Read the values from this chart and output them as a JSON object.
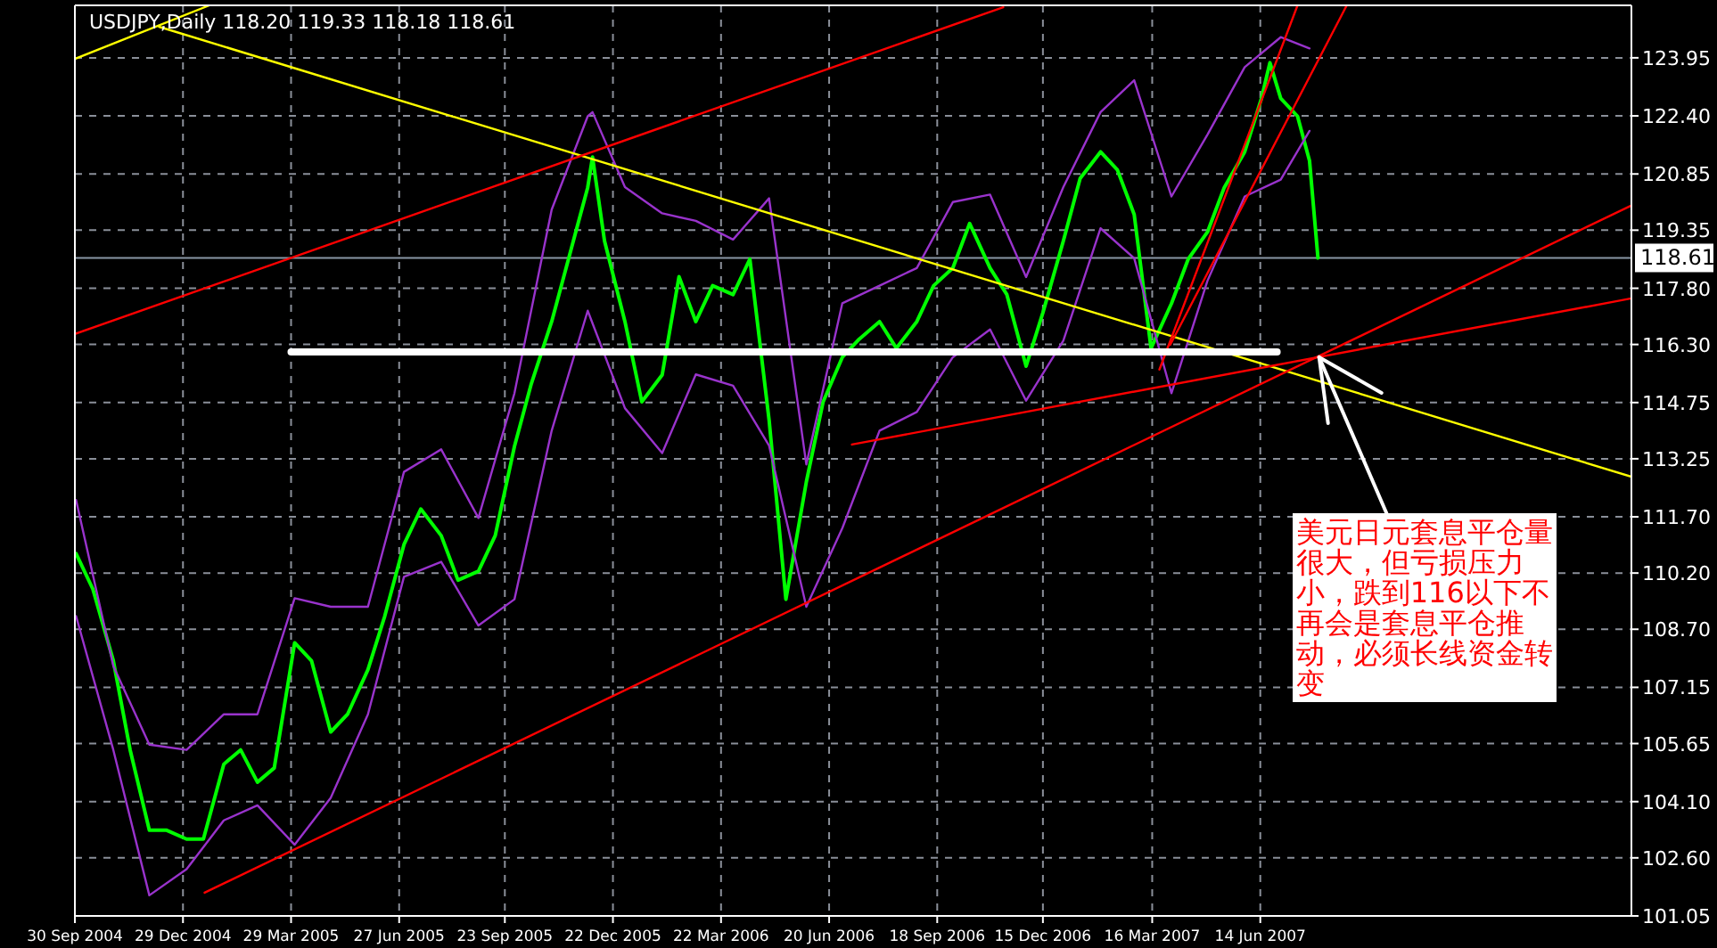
{
  "chart_data": {
    "type": "line",
    "title": "USDJPY,Daily  118.20 119.33 118.18 118.61",
    "xlim": [
      "2004-09-30",
      "2008-04-18"
    ],
    "xticks": [
      {
        "value": "2004-09-30",
        "label": "30 Sep 2004"
      },
      {
        "value": "2004-12-29",
        "label": "29 Dec 2004"
      },
      {
        "value": "2005-03-29",
        "label": "29 Mar 2005"
      },
      {
        "value": "2005-06-27",
        "label": "27 Jun 2005"
      },
      {
        "value": "2005-09-23",
        "label": "23 Sep 2005"
      },
      {
        "value": "2005-12-22",
        "label": "22 Dec 2005"
      },
      {
        "value": "2006-03-22",
        "label": "22 Mar 2006"
      },
      {
        "value": "2006-06-20",
        "label": "20 Jun 2006"
      },
      {
        "value": "2006-09-18",
        "label": "18 Sep 2006"
      },
      {
        "value": "2006-12-15",
        "label": "15 Dec 2006"
      },
      {
        "value": "2007-03-16",
        "label": "16 Mar 2007"
      },
      {
        "value": "2007-06-14",
        "label": "14 Jun 2007"
      }
    ],
    "ylim": [
      101.05,
      125.35
    ],
    "yticks": [
      {
        "value": 101.05,
        "label": "101.05"
      },
      {
        "value": 102.6,
        "label": "102.60"
      },
      {
        "value": 104.1,
        "label": "104.10"
      },
      {
        "value": 105.65,
        "label": "105.65"
      },
      {
        "value": 107.15,
        "label": "107.15"
      },
      {
        "value": 108.7,
        "label": "108.70"
      },
      {
        "value": 110.2,
        "label": "110.20"
      },
      {
        "value": 111.7,
        "label": "111.70"
      },
      {
        "value": 113.25,
        "label": "113.25"
      },
      {
        "value": 114.75,
        "label": "114.75"
      },
      {
        "value": 116.3,
        "label": "116.30"
      },
      {
        "value": 117.8,
        "label": "117.80"
      },
      {
        "value": 119.35,
        "label": "119.35"
      },
      {
        "value": 120.85,
        "label": "120.85"
      },
      {
        "value": 122.4,
        "label": "122.40"
      },
      {
        "value": 123.95,
        "label": "123.95"
      }
    ],
    "grid": true,
    "series": [
      {
        "color": "#00ff00",
        "x": [
          "2004-10-01",
          "2004-10-15",
          "2004-11-01",
          "2004-11-15",
          "2004-12-01",
          "2004-12-15",
          "2005-01-01",
          "2005-01-15",
          "2005-02-01",
          "2005-02-15",
          "2005-03-01",
          "2005-03-15",
          "2005-04-01",
          "2005-04-15",
          "2005-05-01",
          "2005-05-15",
          "2005-06-01",
          "2005-06-15",
          "2005-07-01",
          "2005-07-15",
          "2005-08-01",
          "2005-08-15",
          "2005-09-01",
          "2005-09-15",
          "2005-10-01",
          "2005-10-15",
          "2005-11-01",
          "2005-11-15",
          "2005-12-01",
          "2005-12-05",
          "2005-12-15",
          "2006-01-01",
          "2006-01-15",
          "2006-02-01",
          "2006-02-15",
          "2006-03-01",
          "2006-03-15",
          "2006-04-01",
          "2006-04-15",
          "2006-05-01",
          "2006-05-15",
          "2006-06-01",
          "2006-06-15",
          "2006-07-01",
          "2006-07-15",
          "2006-08-01",
          "2006-08-15",
          "2006-09-01",
          "2006-09-15",
          "2006-10-01",
          "2006-10-15",
          "2006-11-01",
          "2006-11-15",
          "2006-12-01",
          "2006-12-15",
          "2007-01-01",
          "2007-01-15",
          "2007-02-01",
          "2007-02-15",
          "2007-03-01",
          "2007-03-15",
          "2007-04-01",
          "2007-04-15",
          "2007-05-01",
          "2007-05-15",
          "2007-06-01",
          "2007-06-15",
          "2007-06-22",
          "2007-07-01",
          "2007-07-15",
          "2007-07-25",
          "2007-08-01"
        ],
        "values": [
          110.72,
          109.77,
          107.86,
          105.48,
          103.34,
          103.34,
          103.1,
          103.1,
          105.1,
          105.48,
          104.62,
          105.0,
          108.34,
          107.86,
          105.96,
          106.43,
          107.62,
          109.05,
          110.96,
          111.91,
          111.2,
          110.01,
          110.25,
          111.2,
          113.58,
          115.25,
          116.91,
          118.58,
          120.49,
          121.3,
          119.06,
          116.91,
          114.77,
          115.49,
          118.11,
          116.91,
          117.87,
          117.63,
          118.58,
          114.29,
          109.5,
          112.63,
          114.77,
          115.96,
          116.44,
          116.91,
          116.2,
          116.91,
          117.87,
          118.34,
          119.53,
          118.34,
          117.63,
          115.72,
          117.15,
          119.06,
          120.73,
          121.44,
          120.96,
          119.77,
          116.2,
          117.39,
          118.58,
          119.3,
          120.49,
          121.44,
          122.87,
          123.82,
          122.87,
          122.39,
          121.2,
          118.61
        ]
      },
      {
        "color": "#9933cc",
        "x": [
          "2004-10-01",
          "2004-11-01",
          "2004-12-01",
          "2005-01-01",
          "2005-02-01",
          "2005-03-01",
          "2005-04-01",
          "2005-05-01",
          "2005-06-01",
          "2005-07-01",
          "2005-08-01",
          "2005-09-01",
          "2005-10-01",
          "2005-11-01",
          "2005-12-01",
          "2005-12-05",
          "2006-01-01",
          "2006-02-01",
          "2006-03-01",
          "2006-04-01",
          "2006-05-01",
          "2006-06-01",
          "2006-07-01",
          "2006-08-01",
          "2006-09-01",
          "2006-10-01",
          "2006-11-01",
          "2006-12-01",
          "2007-01-01",
          "2007-02-01",
          "2007-03-01",
          "2007-04-01",
          "2007-05-01",
          "2007-06-01",
          "2007-07-01",
          "2007-07-25"
        ],
        "values": [
          112.15,
          107.72,
          105.62,
          105.48,
          106.43,
          106.43,
          109.53,
          109.3,
          109.3,
          112.9,
          113.5,
          111.67,
          115.0,
          119.9,
          122.39,
          122.5,
          120.5,
          119.8,
          119.6,
          119.1,
          120.2,
          113.1,
          117.4,
          117.87,
          118.34,
          120.1,
          120.3,
          118.1,
          120.5,
          122.5,
          123.35,
          120.25,
          121.9,
          123.7,
          124.5,
          124.2
        ]
      },
      {
        "color": "#9933cc",
        "x": [
          "2004-10-01",
          "2004-11-01",
          "2004-12-01",
          "2005-01-01",
          "2005-02-01",
          "2005-03-01",
          "2005-04-01",
          "2005-05-01",
          "2005-06-01",
          "2005-07-01",
          "2005-08-01",
          "2005-09-01",
          "2005-10-01",
          "2005-11-01",
          "2005-12-01",
          "2006-01-01",
          "2006-02-01",
          "2006-03-01",
          "2006-04-01",
          "2006-05-01",
          "2006-06-01",
          "2006-07-01",
          "2006-08-01",
          "2006-09-01",
          "2006-10-01",
          "2006-11-01",
          "2006-12-01",
          "2007-01-01",
          "2007-02-01",
          "2007-03-01",
          "2007-04-01",
          "2007-05-01",
          "2007-06-01",
          "2007-07-01",
          "2007-07-25"
        ],
        "values": [
          109.05,
          105.48,
          101.6,
          102.3,
          103.6,
          104.0,
          102.95,
          104.2,
          106.43,
          110.1,
          110.5,
          108.8,
          109.5,
          114.0,
          117.2,
          114.6,
          113.4,
          115.5,
          115.2,
          113.6,
          109.3,
          111.4,
          114.0,
          114.5,
          115.96,
          116.7,
          114.8,
          116.4,
          119.4,
          118.6,
          115.0,
          118.0,
          120.25,
          120.7,
          122.0
        ]
      },
      {
        "color": "#ffff00",
        "x": [
          "2004-12-09",
          "2008-04-18"
        ],
        "values": [
          124.78,
          112.77
        ]
      },
      {
        "color": "#ffff00",
        "x": [
          "2004-09-30",
          "2005-01-20"
        ],
        "values": [
          123.92,
          125.35
        ]
      },
      {
        "color": "#ff0000",
        "x": [
          "2004-09-30",
          "2006-11-12"
        ],
        "values": [
          116.58,
          125.3
        ]
      },
      {
        "color": "#ff0000",
        "x": [
          "2005-01-16",
          "2008-04-18"
        ],
        "values": [
          101.67,
          120.01
        ]
      },
      {
        "color": "#ff0000",
        "x": [
          "2006-07-09",
          "2008-04-18"
        ],
        "values": [
          113.63,
          117.53
        ]
      },
      {
        "color": "#ff0000",
        "x": [
          "2007-03-22",
          "2007-07-15"
        ],
        "values": [
          115.63,
          125.35
        ]
      },
      {
        "color": "#ff0000",
        "x": [
          "2007-03-31",
          "2007-08-25"
        ],
        "values": [
          116.29,
          125.35
        ]
      },
      {
        "color": "#ffffff",
        "x": [
          "2005-03-29",
          "2007-06-28"
        ],
        "values": [
          116.1,
          116.1
        ]
      }
    ],
    "ref_lines": [
      {
        "axis": "y",
        "value": 118.61,
        "label": "118.61",
        "color": "#8896a4"
      }
    ],
    "annotations": [
      {
        "text": "美元日元套息平仓量很大，但亏损压力小，跌到116以下不再会是套息平仓推动，必须长线资金转变",
        "x": "2007-08-02",
        "y": 115.96
      }
    ]
  }
}
